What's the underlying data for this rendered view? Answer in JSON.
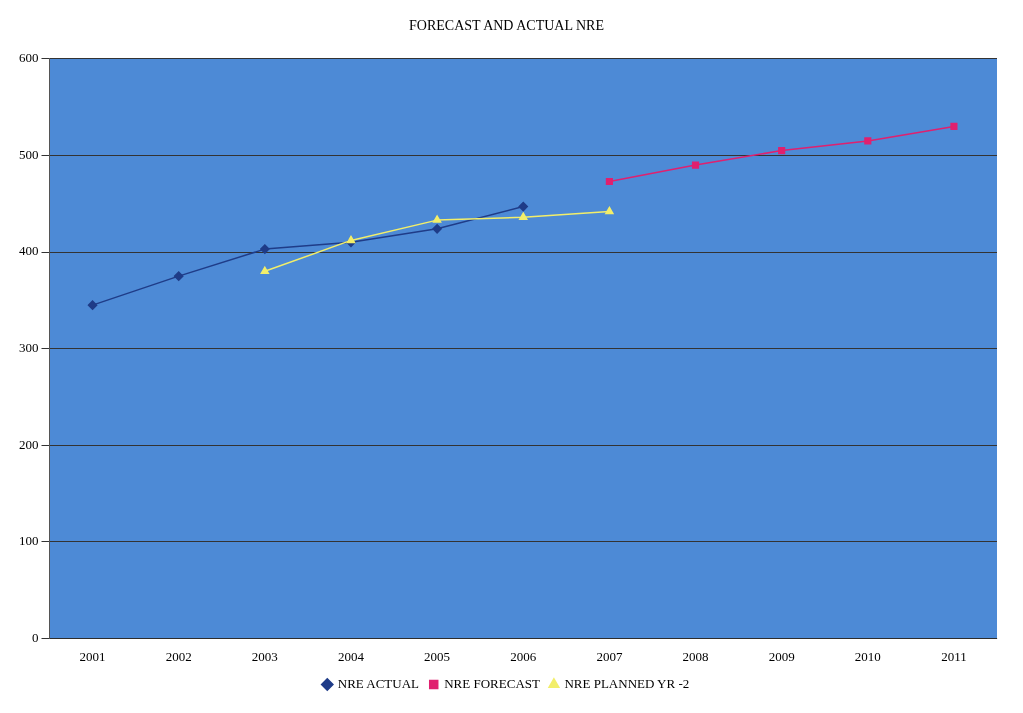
{
  "chart_data": {
    "type": "line",
    "title": "FORECAST AND ACTUAL NRE",
    "categories": [
      "2001",
      "2002",
      "2003",
      "2004",
      "2005",
      "2006",
      "2007",
      "2008",
      "2009",
      "2010",
      "2011"
    ],
    "series": [
      {
        "name": "NRE ACTUAL",
        "color": "#1f3c88",
        "marker": "diamond",
        "values": [
          345,
          375,
          403,
          410,
          424,
          447,
          null,
          null,
          null,
          null,
          null
        ]
      },
      {
        "name": "NRE FORECAST",
        "color": "#e0206f",
        "marker": "square",
        "values": [
          null,
          null,
          null,
          null,
          null,
          null,
          473,
          490,
          505,
          515,
          530
        ]
      },
      {
        "name": "NRE PLANNED YR -2",
        "color": "#f2ee6a",
        "marker": "triangle",
        "values": [
          null,
          null,
          380,
          412,
          433,
          436,
          442,
          null,
          null,
          null,
          null
        ]
      }
    ],
    "ylim": [
      0,
      600
    ],
    "yticks": [
      0,
      100,
      200,
      300,
      400,
      500,
      600
    ],
    "grid": "y",
    "legend": "bottom",
    "line_style": "solid"
  }
}
